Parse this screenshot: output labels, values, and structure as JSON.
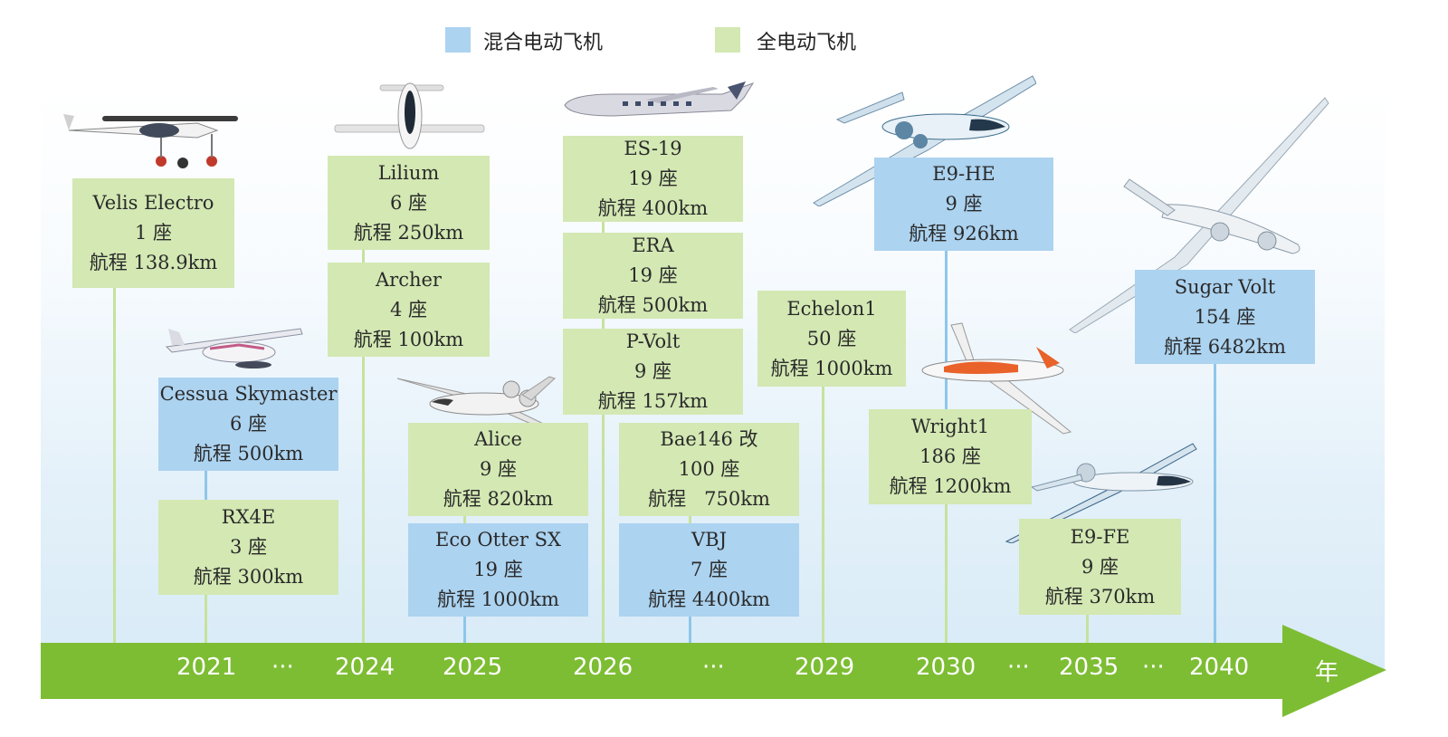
{
  "legend": {
    "hybrid": {
      "label": "混合电动飞机",
      "color": "#acd3f0"
    },
    "electric": {
      "label": "全电动飞机",
      "color": "#d3e8b3"
    }
  },
  "timeline": {
    "labels": [
      "2021",
      "···",
      "2024",
      "2025",
      "2026",
      "···",
      "2029",
      "2030",
      "···",
      "2035",
      "···",
      "2040",
      "年"
    ],
    "color": "#7dbd33"
  },
  "aircraft": [
    {
      "name": "Velis Electro",
      "seats": "1 座",
      "range": "航程 138.9km",
      "type": "electric"
    },
    {
      "name": "Cessua Skymaster",
      "seats": "6 座",
      "range": "航程 500km",
      "type": "hybrid"
    },
    {
      "name": "RX4E",
      "seats": "3 座",
      "range": "航程 300km",
      "type": "electric"
    },
    {
      "name": "Lilium",
      "seats": "6 座",
      "range": "航程 250km",
      "type": "electric"
    },
    {
      "name": "Archer",
      "seats": "4 座",
      "range": "航程 100km",
      "type": "electric"
    },
    {
      "name": "Alice",
      "seats": "9 座",
      "range": "航程 820km",
      "type": "electric"
    },
    {
      "name": "Eco Otter SX",
      "seats": "19 座",
      "range": "航程 1000km",
      "type": "hybrid"
    },
    {
      "name": "ES-19",
      "seats": "19 座",
      "range": "航程 400km",
      "type": "electric"
    },
    {
      "name": "ERA",
      "seats": "19 座",
      "range": "航程 500km",
      "type": "electric"
    },
    {
      "name": "P-Volt",
      "seats": "9 座",
      "range": "航程 157km",
      "type": "electric"
    },
    {
      "name": "Bae146 改",
      "seats": "100 座",
      "range": "航程   750km",
      "type": "electric"
    },
    {
      "name": "VBJ",
      "seats": "7 座",
      "range": "航程 4400km",
      "type": "hybrid"
    },
    {
      "name": "Echelon1",
      "seats": "50 座",
      "range": "航程 1000km",
      "type": "electric"
    },
    {
      "name": "E9-HE",
      "seats": "9 座",
      "range": "航程 926km",
      "type": "hybrid"
    },
    {
      "name": "Wright1",
      "seats": "186 座",
      "range": "航程 1200km",
      "type": "electric"
    },
    {
      "name": "E9-FE",
      "seats": "9 座",
      "range": "航程 370km",
      "type": "electric"
    },
    {
      "name": "Sugar Volt",
      "seats": "154 座",
      "range": "航程 6482km",
      "type": "hybrid"
    }
  ]
}
